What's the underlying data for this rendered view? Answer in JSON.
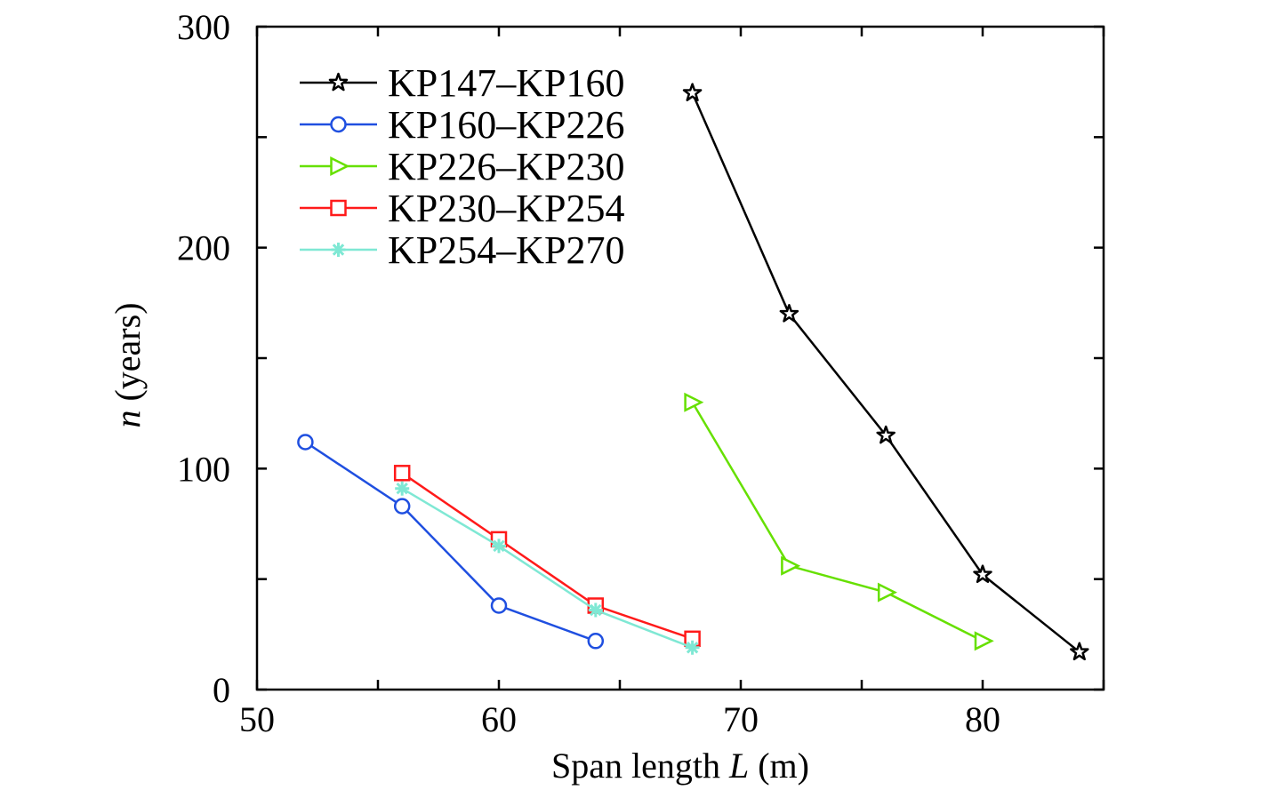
{
  "chart_data": {
    "type": "line",
    "title": "",
    "xlabel": "Span length L (m)",
    "xlabel_parts": [
      "Span length ",
      "L",
      " (m)"
    ],
    "ylabel": "n (years)",
    "ylabel_parts": [
      "n",
      " (years)"
    ],
    "xlim": [
      50,
      85
    ],
    "ylim": [
      0,
      300
    ],
    "x_ticks": [
      50,
      55,
      60,
      65,
      70,
      75,
      80,
      85
    ],
    "x_tick_labels": [
      "50",
      "",
      "60",
      "",
      "70",
      "",
      "80",
      ""
    ],
    "y_ticks": [
      0,
      50,
      100,
      150,
      200,
      250,
      300
    ],
    "y_tick_labels": [
      "0",
      "",
      "100",
      "",
      "200",
      "",
      "300"
    ],
    "grid": false,
    "legend_position": "top-left",
    "series": [
      {
        "name": "KP147–KP160",
        "color": "#000000",
        "marker": "star",
        "x": [
          68,
          72,
          76,
          80,
          84
        ],
        "y": [
          270,
          170,
          115,
          52,
          17
        ]
      },
      {
        "name": "KP160–KP226",
        "color": "#1f4fe0",
        "marker": "circle",
        "x": [
          52,
          56,
          60,
          64
        ],
        "y": [
          112,
          83,
          38,
          22
        ]
      },
      {
        "name": "KP226–KP230",
        "color": "#66e000",
        "marker": "triangle-right",
        "x": [
          68,
          72,
          76,
          80
        ],
        "y": [
          130,
          56,
          44,
          22
        ]
      },
      {
        "name": "KP230–KP254",
        "color": "#ff1a1a",
        "marker": "square",
        "x": [
          56,
          60,
          64,
          68
        ],
        "y": [
          98,
          68,
          38,
          23
        ]
      },
      {
        "name": "KP254–KP270",
        "color": "#7fe8d4",
        "marker": "asterisk",
        "x": [
          56,
          60,
          64,
          68
        ],
        "y": [
          91,
          65,
          36,
          19
        ]
      }
    ]
  }
}
